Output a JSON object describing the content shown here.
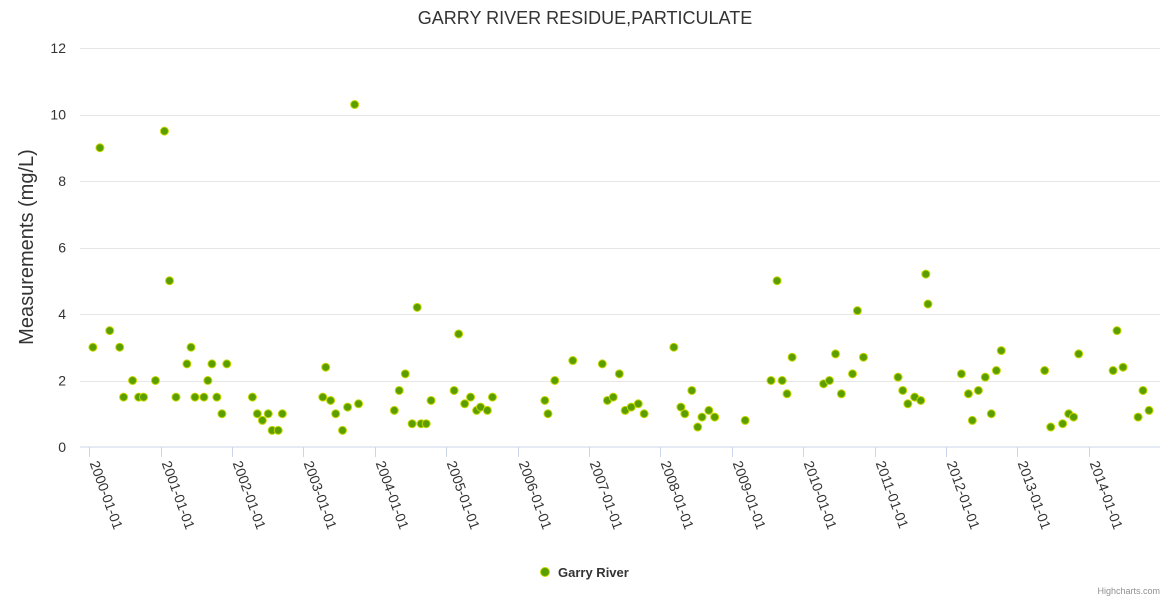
{
  "chart_data": {
    "type": "scatter",
    "title": "GARRY RIVER RESIDUE,PARTICULATE",
    "ylabel": "Measurements (mg/L)",
    "xlabel": "",
    "ylim": [
      0,
      12
    ],
    "yticks": [
      0,
      2,
      4,
      6,
      8,
      10,
      12
    ],
    "xlim": [
      "1999-11-15",
      "2014-12-31"
    ],
    "xticks": [
      "2000-01-01",
      "2001-01-01",
      "2002-01-01",
      "2003-01-01",
      "2004-01-01",
      "2005-01-01",
      "2006-01-01",
      "2007-01-01",
      "2008-01-01",
      "2009-01-01",
      "2010-01-01",
      "2011-01-01",
      "2012-01-01",
      "2013-01-01",
      "2014-01-01"
    ],
    "grid": true,
    "legend_position": "bottom-center",
    "color": "#5a9e00",
    "series": [
      {
        "name": "Garry River",
        "points": [
          [
            "2000-01-20",
            3.0
          ],
          [
            "2000-02-25",
            9.0
          ],
          [
            "2000-04-15",
            3.5
          ],
          [
            "2000-06-05",
            3.0
          ],
          [
            "2000-06-25",
            1.5
          ],
          [
            "2000-08-10",
            2.0
          ],
          [
            "2000-09-10",
            1.5
          ],
          [
            "2000-10-05",
            1.5
          ],
          [
            "2000-12-05",
            2.0
          ],
          [
            "2001-01-20",
            9.5
          ],
          [
            "2001-02-15",
            5.0
          ],
          [
            "2001-03-20",
            1.5
          ],
          [
            "2001-05-15",
            2.5
          ],
          [
            "2001-06-05",
            3.0
          ],
          [
            "2001-06-25",
            1.5
          ],
          [
            "2001-08-10",
            1.5
          ],
          [
            "2001-08-30",
            2.0
          ],
          [
            "2001-09-20",
            2.5
          ],
          [
            "2001-10-15",
            1.5
          ],
          [
            "2001-11-10",
            1.0
          ],
          [
            "2001-12-05",
            2.5
          ],
          [
            "2002-04-15",
            1.5
          ],
          [
            "2002-05-10",
            1.0
          ],
          [
            "2002-06-05",
            0.8
          ],
          [
            "2002-07-05",
            1.0
          ],
          [
            "2002-07-25",
            0.5
          ],
          [
            "2002-08-25",
            0.5
          ],
          [
            "2002-09-15",
            1.0
          ],
          [
            "2003-04-10",
            1.5
          ],
          [
            "2003-04-25",
            2.4
          ],
          [
            "2003-05-20",
            1.4
          ],
          [
            "2003-06-15",
            1.0
          ],
          [
            "2003-07-20",
            0.5
          ],
          [
            "2003-08-15",
            1.2
          ],
          [
            "2003-09-20",
            10.3
          ],
          [
            "2003-10-10",
            1.3
          ],
          [
            "2004-04-10",
            1.1
          ],
          [
            "2004-05-05",
            1.7
          ],
          [
            "2004-06-05",
            2.2
          ],
          [
            "2004-07-10",
            0.7
          ],
          [
            "2004-08-05",
            4.2
          ],
          [
            "2004-08-25",
            0.7
          ],
          [
            "2004-09-20",
            0.7
          ],
          [
            "2004-10-15",
            1.4
          ],
          [
            "2005-02-10",
            1.7
          ],
          [
            "2005-03-05",
            3.4
          ],
          [
            "2005-04-05",
            1.3
          ],
          [
            "2005-05-05",
            1.5
          ],
          [
            "2005-06-05",
            1.1
          ],
          [
            "2005-06-25",
            1.2
          ],
          [
            "2005-07-30",
            1.1
          ],
          [
            "2005-08-25",
            1.5
          ],
          [
            "2006-05-20",
            1.4
          ],
          [
            "2006-06-05",
            1.0
          ],
          [
            "2006-07-10",
            2.0
          ],
          [
            "2006-10-10",
            2.6
          ],
          [
            "2007-03-10",
            2.5
          ],
          [
            "2007-04-05",
            1.4
          ],
          [
            "2007-05-05",
            1.5
          ],
          [
            "2007-06-05",
            2.2
          ],
          [
            "2007-07-05",
            1.1
          ],
          [
            "2007-08-05",
            1.2
          ],
          [
            "2007-09-10",
            1.3
          ],
          [
            "2007-10-10",
            1.0
          ],
          [
            "2008-03-10",
            3.0
          ],
          [
            "2008-04-15",
            1.2
          ],
          [
            "2008-05-05",
            1.0
          ],
          [
            "2008-06-10",
            1.7
          ],
          [
            "2008-07-10",
            0.6
          ],
          [
            "2008-08-01",
            0.9
          ],
          [
            "2008-09-05",
            1.1
          ],
          [
            "2008-10-05",
            0.9
          ],
          [
            "2009-03-10",
            0.8
          ],
          [
            "2009-07-20",
            2.0
          ],
          [
            "2009-08-20",
            5.0
          ],
          [
            "2009-09-15",
            2.0
          ],
          [
            "2009-10-10",
            1.6
          ],
          [
            "2009-11-05",
            2.7
          ],
          [
            "2010-04-15",
            1.9
          ],
          [
            "2010-05-15",
            2.0
          ],
          [
            "2010-06-15",
            2.8
          ],
          [
            "2010-07-15",
            1.6
          ],
          [
            "2010-09-10",
            2.2
          ],
          [
            "2010-10-05",
            4.1
          ],
          [
            "2010-11-05",
            2.7
          ],
          [
            "2011-05-01",
            2.1
          ],
          [
            "2011-05-25",
            1.7
          ],
          [
            "2011-06-20",
            1.3
          ],
          [
            "2011-07-25",
            1.5
          ],
          [
            "2011-08-25",
            1.4
          ],
          [
            "2011-09-20",
            5.2
          ],
          [
            "2011-10-01",
            4.3
          ],
          [
            "2012-03-20",
            2.2
          ],
          [
            "2012-04-25",
            1.6
          ],
          [
            "2012-05-15",
            0.8
          ],
          [
            "2012-06-15",
            1.7
          ],
          [
            "2012-07-20",
            2.1
          ],
          [
            "2012-08-20",
            1.0
          ],
          [
            "2012-09-15",
            2.3
          ],
          [
            "2012-10-10",
            2.9
          ],
          [
            "2013-05-20",
            2.3
          ],
          [
            "2013-06-20",
            0.6
          ],
          [
            "2013-08-20",
            0.7
          ],
          [
            "2013-09-20",
            1.0
          ],
          [
            "2013-10-15",
            0.9
          ],
          [
            "2013-11-10",
            2.8
          ],
          [
            "2014-05-05",
            2.3
          ],
          [
            "2014-05-25",
            3.5
          ],
          [
            "2014-06-25",
            2.4
          ],
          [
            "2014-09-10",
            0.9
          ],
          [
            "2014-10-05",
            1.7
          ],
          [
            "2014-11-05",
            1.1
          ]
        ]
      }
    ]
  },
  "credits": "Highcharts.com"
}
